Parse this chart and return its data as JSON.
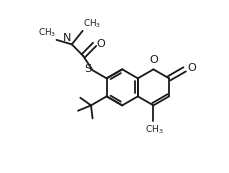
{
  "bg_color": "#ffffff",
  "line_color": "#1a1a1a",
  "line_width": 1.3,
  "font_size": 7.5,
  "figsize": [
    2.29,
    1.73
  ],
  "dpi": 100,
  "xlim": [
    0.0,
    1.0
  ],
  "ylim": [
    0.0,
    1.0
  ]
}
